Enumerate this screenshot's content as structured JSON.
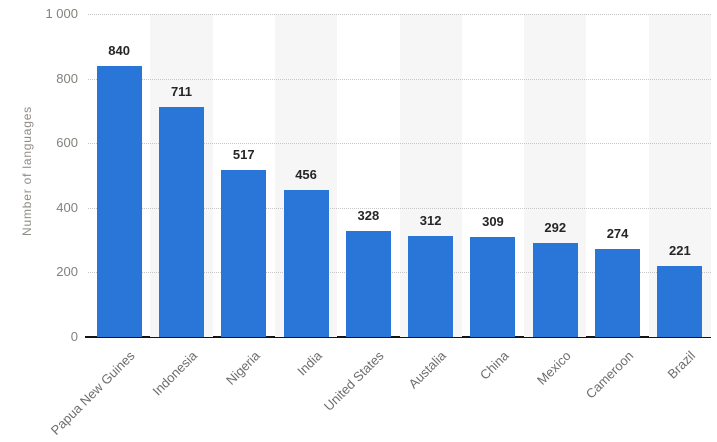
{
  "chart_data": {
    "type": "bar",
    "title": "",
    "xlabel": "",
    "ylabel": "Number of languages",
    "categories": [
      "Papua New Guines",
      "Indonesia",
      "Nigeria",
      "India",
      "United States",
      "Austalia",
      "China",
      "Mexico",
      "Cameroon",
      "Brazil"
    ],
    "values": [
      840,
      711,
      517,
      456,
      328,
      312,
      309,
      292,
      274,
      221
    ],
    "ylim": [
      0,
      1000
    ],
    "yticks": [
      0,
      200,
      400,
      600,
      800,
      1000
    ],
    "ytick_labels": [
      "0",
      "200",
      "400",
      "600",
      "800",
      "1 000"
    ],
    "grid": "horizontal dotted",
    "legend": "none",
    "value_labels_shown": true,
    "colors": {
      "bar": "#2a75d8",
      "stripe": "#f6f6f6",
      "gridline": "#c6c6c6",
      "axis_line": "#141414",
      "value_label": "#262626",
      "tick_label": "#84807c",
      "category_label": "#6d6d6d",
      "y_title": "#8f8b87",
      "background": "#ffffff"
    }
  }
}
